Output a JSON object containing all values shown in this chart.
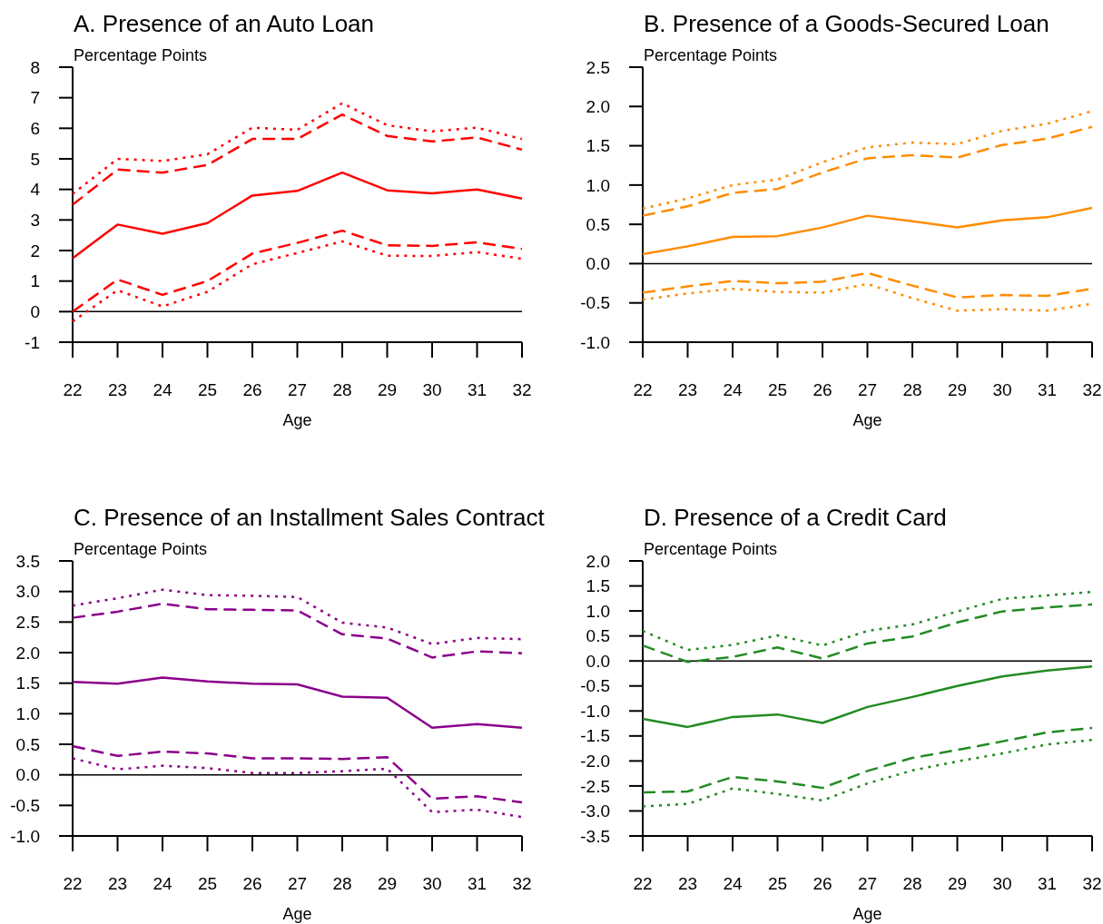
{
  "chart_data": [
    {
      "type": "line",
      "title": "A. Presence of an Auto Loan",
      "ylabel": "Percentage Points",
      "xlabel": "Age",
      "x": [
        22,
        23,
        24,
        25,
        26,
        27,
        28,
        29,
        30,
        31,
        32
      ],
      "xlim": [
        22,
        32
      ],
      "xticks": [
        22,
        23,
        24,
        25,
        26,
        27,
        28,
        29,
        30,
        31,
        32
      ],
      "ylim": [
        -1,
        8
      ],
      "yticks": [
        -1,
        0,
        1,
        2,
        3,
        4,
        5,
        6,
        7,
        8
      ],
      "ref_lines": [
        {
          "axis": "y",
          "value": 0,
          "color": "#000000"
        }
      ],
      "series": [
        {
          "color": "#ff0000",
          "line_style": "solid",
          "values": [
            1.75,
            2.85,
            2.55,
            2.9,
            3.8,
            3.95,
            4.55,
            3.97,
            3.87,
            4.0,
            3.7
          ]
        },
        {
          "color": "#ff0000",
          "line_style": "dashed",
          "values": [
            3.5,
            4.65,
            4.55,
            4.8,
            5.65,
            5.65,
            6.45,
            5.75,
            5.57,
            5.7,
            5.3
          ]
        },
        {
          "color": "#ff0000",
          "line_style": "dotted",
          "values": [
            3.85,
            5.0,
            4.93,
            5.15,
            6.02,
            5.95,
            6.82,
            6.1,
            5.9,
            6.02,
            5.65
          ]
        },
        {
          "color": "#ff0000",
          "line_style": "dashed",
          "values": [
            0.0,
            1.05,
            0.55,
            1.0,
            1.9,
            2.25,
            2.65,
            2.17,
            2.15,
            2.27,
            2.05
          ]
        },
        {
          "color": "#ff0000",
          "line_style": "dotted",
          "values": [
            -0.32,
            0.7,
            0.17,
            0.65,
            1.55,
            1.92,
            2.3,
            1.83,
            1.82,
            1.95,
            1.73
          ]
        }
      ]
    },
    {
      "type": "line",
      "title": "B. Presence of a Goods-Secured Loan",
      "ylabel": "Percentage Points",
      "xlabel": "Age",
      "x": [
        22,
        23,
        24,
        25,
        26,
        27,
        28,
        29,
        30,
        31,
        32
      ],
      "xlim": [
        22,
        32
      ],
      "xticks": [
        22,
        23,
        24,
        25,
        26,
        27,
        28,
        29,
        30,
        31,
        32
      ],
      "ylim": [
        -1,
        2.5
      ],
      "yticks": [
        {
          "value": -1,
          "label": "-1.0"
        },
        -0.5,
        {
          "value": 0,
          "label": "0.0"
        },
        0.5,
        {
          "value": 1,
          "label": "1.0"
        },
        1.5,
        {
          "value": 2,
          "label": "2.0"
        },
        2.5
      ],
      "ref_lines": [
        {
          "axis": "y",
          "value": 0,
          "color": "#000000"
        }
      ],
      "series": [
        {
          "color": "#ff8c00",
          "line_style": "solid",
          "values": [
            0.12,
            0.22,
            0.34,
            0.35,
            0.46,
            0.61,
            0.54,
            0.46,
            0.55,
            0.59,
            0.71
          ]
        },
        {
          "color": "#ff8c00",
          "line_style": "dashed",
          "values": [
            0.61,
            0.73,
            0.9,
            0.95,
            1.16,
            1.34,
            1.38,
            1.35,
            1.51,
            1.59,
            1.74
          ]
        },
        {
          "color": "#ff8c00",
          "line_style": "dotted",
          "values": [
            0.7,
            0.83,
            1.0,
            1.07,
            1.29,
            1.48,
            1.54,
            1.52,
            1.69,
            1.78,
            1.94
          ]
        },
        {
          "color": "#ff8c00",
          "line_style": "dashed",
          "values": [
            -0.37,
            -0.29,
            -0.22,
            -0.25,
            -0.23,
            -0.12,
            -0.28,
            -0.43,
            -0.4,
            -0.41,
            -0.32
          ]
        },
        {
          "color": "#ff8c00",
          "line_style": "dotted",
          "values": [
            -0.46,
            -0.38,
            -0.32,
            -0.36,
            -0.37,
            -0.26,
            -0.44,
            -0.6,
            -0.58,
            -0.6,
            -0.51
          ]
        }
      ]
    },
    {
      "type": "line",
      "title": "C. Presence of an Installment Sales Contract",
      "ylabel": "Percentage Points",
      "xlabel": "Age",
      "x": [
        22,
        23,
        24,
        25,
        26,
        27,
        28,
        29,
        30,
        31,
        32
      ],
      "xlim": [
        22,
        32
      ],
      "xticks": [
        22,
        23,
        24,
        25,
        26,
        27,
        28,
        29,
        30,
        31,
        32
      ],
      "ylim": [
        -1,
        3.5
      ],
      "yticks": [
        {
          "value": -1,
          "label": "-1.0"
        },
        -0.5,
        {
          "value": 0,
          "label": "0.0"
        },
        0.5,
        {
          "value": 1,
          "label": "1.0"
        },
        1.5,
        {
          "value": 2,
          "label": "2.0"
        },
        2.5,
        {
          "value": 3,
          "label": "3.0"
        },
        3.5
      ],
      "ref_lines": [
        {
          "axis": "y",
          "value": 0,
          "color": "#000000"
        }
      ],
      "series": [
        {
          "color": "#8b008b",
          "line_style": "solid",
          "values": [
            1.52,
            1.49,
            1.59,
            1.53,
            1.49,
            1.48,
            1.28,
            1.26,
            0.77,
            0.83,
            0.77
          ]
        },
        {
          "color": "#8b008b",
          "line_style": "dashed",
          "values": [
            2.57,
            2.67,
            2.8,
            2.71,
            2.7,
            2.69,
            2.3,
            2.23,
            1.92,
            2.02,
            1.99
          ]
        },
        {
          "color": "#8b008b",
          "line_style": "dotted",
          "values": [
            2.77,
            2.89,
            3.03,
            2.94,
            2.93,
            2.91,
            2.49,
            2.41,
            2.14,
            2.24,
            2.22
          ]
        },
        {
          "color": "#8b008b",
          "line_style": "dashed",
          "values": [
            0.47,
            0.31,
            0.38,
            0.35,
            0.27,
            0.27,
            0.26,
            0.29,
            -0.39,
            -0.35,
            -0.45
          ]
        },
        {
          "color": "#8b008b",
          "line_style": "dotted",
          "values": [
            0.27,
            0.09,
            0.15,
            0.11,
            0.03,
            0.03,
            0.06,
            0.1,
            -0.61,
            -0.57,
            -0.69
          ]
        }
      ]
    },
    {
      "type": "line",
      "title": "D. Presence of a Credit Card",
      "ylabel": "Percentage Points",
      "xlabel": "Age",
      "x": [
        22,
        23,
        24,
        25,
        26,
        27,
        28,
        29,
        30,
        31,
        32
      ],
      "xlim": [
        22,
        32
      ],
      "xticks": [
        22,
        23,
        24,
        25,
        26,
        27,
        28,
        29,
        30,
        31,
        32
      ],
      "ylim": [
        -3.5,
        2
      ],
      "yticks": [
        -3.5,
        {
          "value": -3,
          "label": "-3.0"
        },
        -2.5,
        {
          "value": -2,
          "label": "-2.0"
        },
        -1.5,
        {
          "value": -1,
          "label": "-1.0"
        },
        -0.5,
        {
          "value": 0,
          "label": "0.0"
        },
        0.5,
        {
          "value": 1,
          "label": "1.0"
        },
        1.5,
        {
          "value": 2,
          "label": "2.0"
        }
      ],
      "ref_lines": [
        {
          "axis": "y",
          "value": 0,
          "color": "#000000"
        }
      ],
      "series": [
        {
          "color": "#228b22",
          "line_style": "solid",
          "values": [
            -1.16,
            -1.32,
            -1.12,
            -1.07,
            -1.24,
            -0.92,
            -0.72,
            -0.5,
            -0.31,
            -0.19,
            -0.11
          ]
        },
        {
          "color": "#228b22",
          "line_style": "dashed",
          "values": [
            0.31,
            -0.02,
            0.08,
            0.27,
            0.05,
            0.35,
            0.49,
            0.77,
            0.99,
            1.07,
            1.13
          ]
        },
        {
          "color": "#228b22",
          "line_style": "dotted",
          "values": [
            0.6,
            0.22,
            0.32,
            0.51,
            0.31,
            0.6,
            0.73,
            0.99,
            1.24,
            1.31,
            1.38
          ]
        },
        {
          "color": "#228b22",
          "line_style": "dashed",
          "values": [
            -2.63,
            -2.61,
            -2.32,
            -2.41,
            -2.54,
            -2.2,
            -1.94,
            -1.78,
            -1.61,
            -1.43,
            -1.34
          ]
        },
        {
          "color": "#228b22",
          "line_style": "dotted",
          "values": [
            -2.91,
            -2.86,
            -2.55,
            -2.66,
            -2.79,
            -2.45,
            -2.19,
            -2.01,
            -1.85,
            -1.67,
            -1.58
          ]
        }
      ]
    }
  ]
}
